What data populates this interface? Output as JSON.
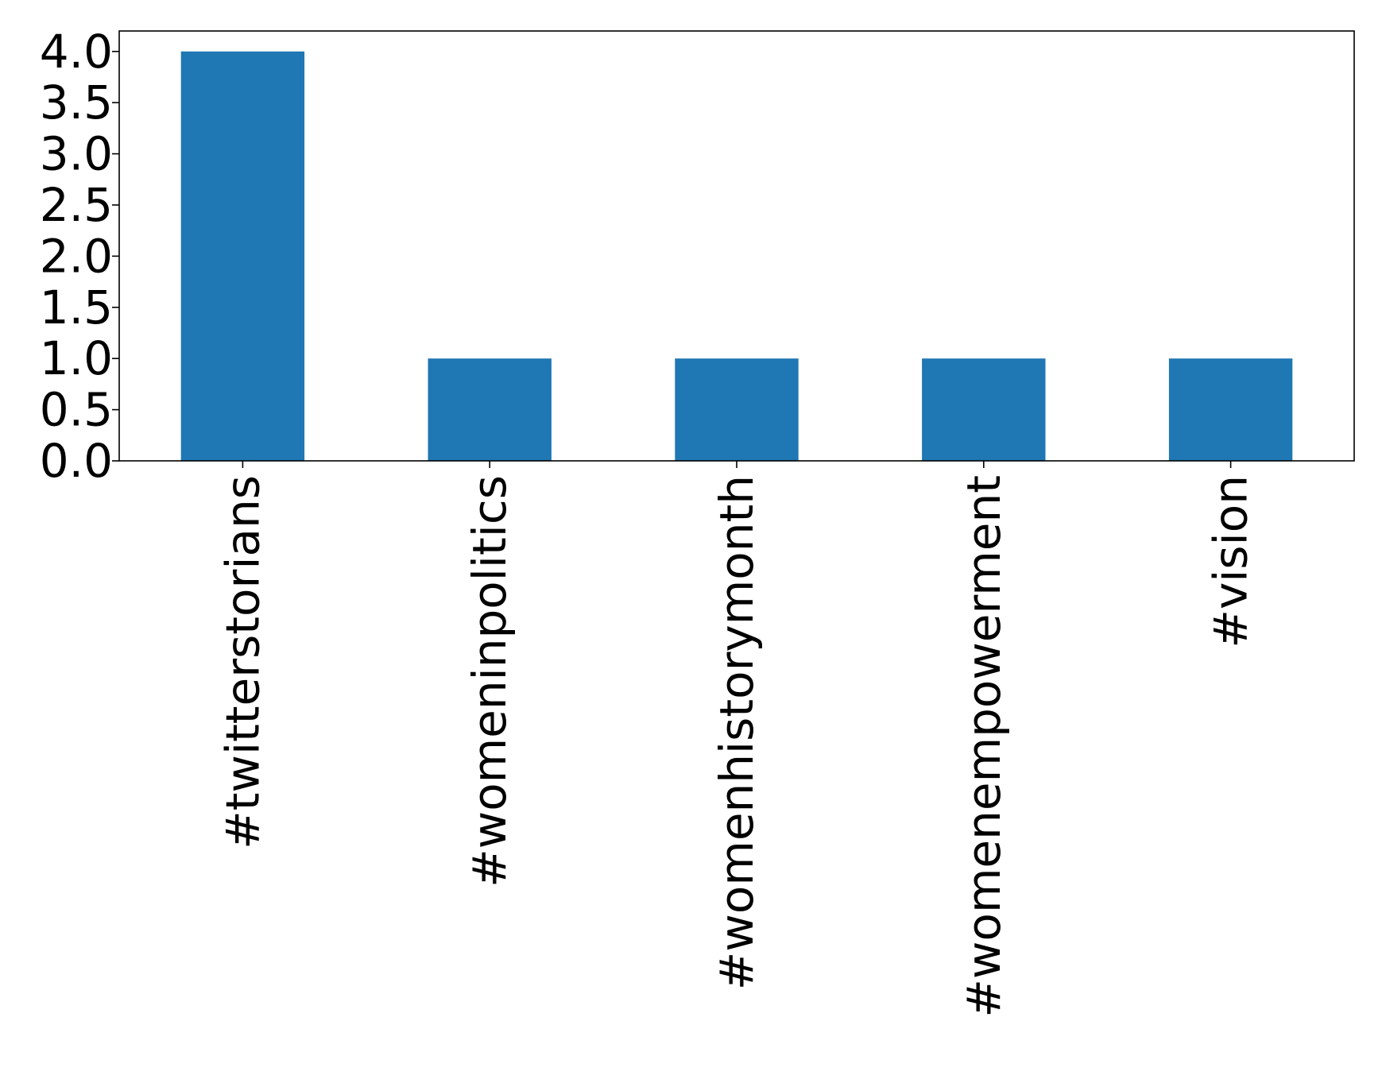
{
  "chart_data": {
    "type": "bar",
    "title": "",
    "xlabel": "",
    "ylabel": "",
    "categories": [
      "#twitterstorians",
      "#womeninpolitics",
      "#womenhistorymonth",
      "#womenempowerment",
      "#vision"
    ],
    "values": [
      4,
      1,
      1,
      1,
      1
    ],
    "ylim": [
      0,
      4.2
    ],
    "yticks": [
      0.0,
      0.5,
      1.0,
      1.5,
      2.0,
      2.5,
      3.0,
      3.5,
      4.0
    ],
    "ytick_labels": [
      "0.0",
      "0.5",
      "1.0",
      "1.5",
      "2.0",
      "2.5",
      "3.0",
      "3.5",
      "4.0"
    ],
    "grid": false,
    "legend": "none",
    "bar_color": "#1f77b4"
  }
}
